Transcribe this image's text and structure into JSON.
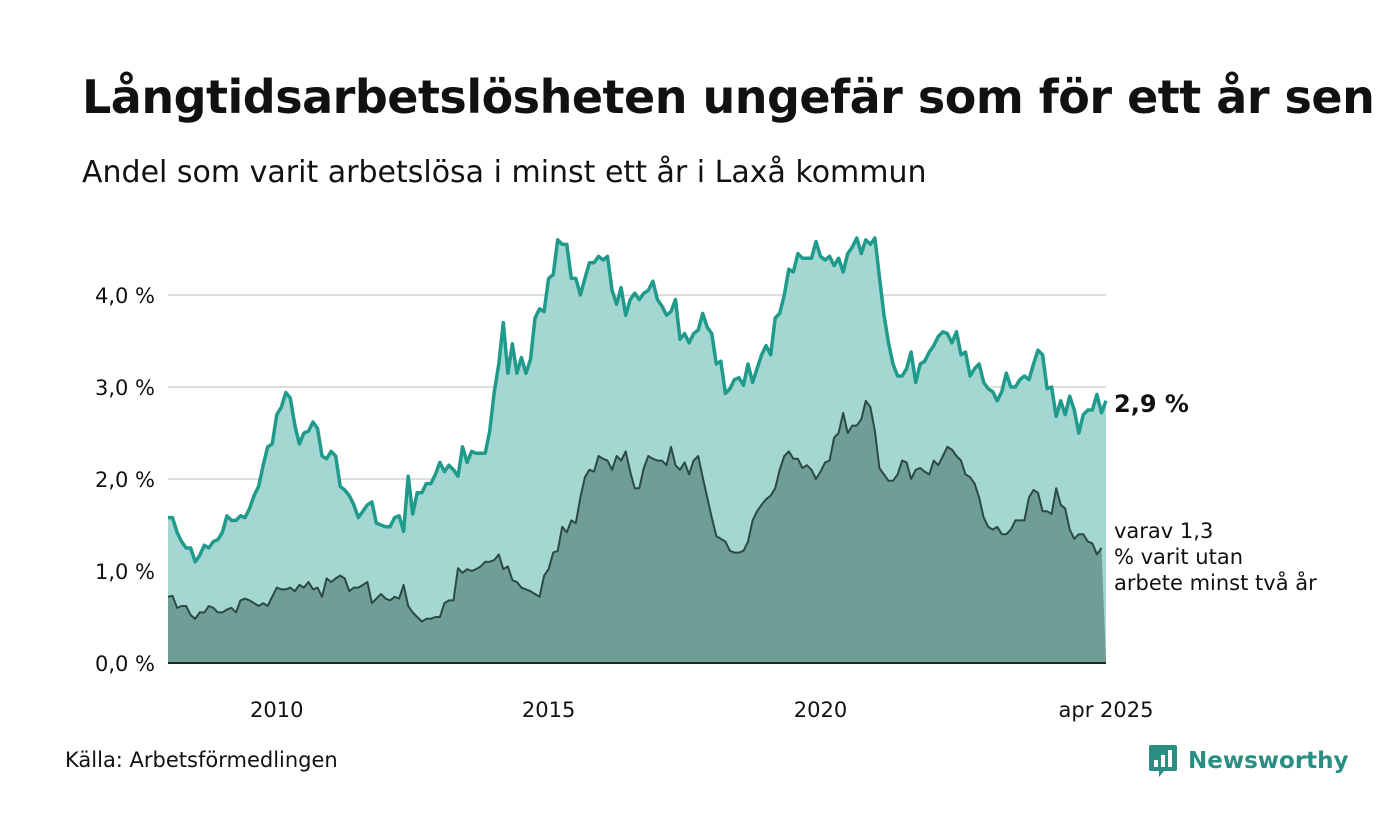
{
  "title": "Långtidsarbetslösheten ungefär som för ett år sen",
  "subtitle": "Andel som varit arbetslösa i minst ett år i Laxå kommun",
  "source": "Källa: Arbetsförmedlingen",
  "brand": "Newsworthy",
  "colors": {
    "series1_line": "#1f9a8b",
    "series1_fill": "#a4d7d1",
    "series2_line": "#2c4a44",
    "series2_fill": "#6f9e96",
    "grid": "#dddddd",
    "brand": "#2a8f82"
  },
  "chart_data": {
    "type": "area",
    "x_start": "2008-01",
    "x_end": "2025-04",
    "x_ticks": [
      "2010",
      "2015",
      "2020",
      "apr 2025"
    ],
    "y_ticks": [
      "0,0 %",
      "1,0 %",
      "2,0 %",
      "3,0 %",
      "4,0 %"
    ],
    "ylim": [
      0,
      4.8
    ],
    "grid": true,
    "series": [
      {
        "name": "",
        "end_label": "2,9 %",
        "values": [
          1.58,
          1.58,
          1.42,
          1.32,
          1.25,
          1.25,
          1.1,
          1.17,
          1.28,
          1.25,
          1.32,
          1.34,
          1.42,
          1.6,
          1.55,
          1.55,
          1.6,
          1.58,
          1.68,
          1.82,
          1.92,
          2.15,
          2.35,
          2.38,
          2.7,
          2.78,
          2.94,
          2.88,
          2.58,
          2.38,
          2.5,
          2.52,
          2.62,
          2.55,
          2.25,
          2.22,
          2.3,
          2.25,
          1.92,
          1.88,
          1.82,
          1.72,
          1.58,
          1.65,
          1.72,
          1.75,
          1.52,
          1.5,
          1.48,
          1.48,
          1.58,
          1.6,
          1.43,
          2.03,
          1.62,
          1.85,
          1.85,
          1.95,
          1.95,
          2.05,
          2.18,
          2.08,
          2.15,
          2.1,
          2.03,
          2.35,
          2.18,
          2.3,
          2.28,
          2.28,
          2.28,
          2.52,
          2.95,
          3.25,
          3.7,
          3.15,
          3.47,
          3.15,
          3.32,
          3.15,
          3.3,
          3.75,
          3.85,
          3.82,
          4.18,
          4.22,
          4.6,
          4.55,
          4.55,
          4.18,
          4.18,
          4.0,
          4.18,
          4.35,
          4.35,
          4.42,
          4.38,
          4.42,
          4.05,
          3.9,
          4.08,
          3.78,
          3.95,
          4.02,
          3.95,
          4.02,
          4.05,
          4.15,
          3.95,
          3.88,
          3.78,
          3.82,
          3.95,
          3.52,
          3.58,
          3.48,
          3.58,
          3.62,
          3.8,
          3.65,
          3.58,
          3.25,
          3.28,
          2.93,
          2.98,
          3.08,
          3.1,
          3.02,
          3.25,
          3.05,
          3.2,
          3.35,
          3.45,
          3.35,
          3.75,
          3.8,
          4.0,
          4.28,
          4.25,
          4.45,
          4.4,
          4.4,
          4.4,
          4.58,
          4.42,
          4.38,
          4.42,
          4.32,
          4.4,
          4.25,
          4.45,
          4.52,
          4.62,
          4.45,
          4.6,
          4.55,
          4.62,
          4.2,
          3.78,
          3.48,
          3.25,
          3.12,
          3.12,
          3.2,
          3.38,
          3.05,
          3.25,
          3.28,
          3.38,
          3.45,
          3.55,
          3.6,
          3.58,
          3.48,
          3.6,
          3.35,
          3.38,
          3.12,
          3.2,
          3.25,
          3.05,
          2.98,
          2.95,
          2.85,
          2.95,
          3.15,
          3.0,
          3.0,
          3.08,
          3.12,
          3.08,
          3.25,
          3.4,
          3.35,
          2.98,
          3.0,
          2.68,
          2.85,
          2.7,
          2.9,
          2.75,
          2.5,
          2.7,
          2.75,
          2.75,
          2.92,
          2.72,
          2.85
        ]
      },
      {
        "name": "",
        "end_label": "varav 1,3 % varit utan arbete minst två år",
        "values": [
          0.72,
          0.73,
          0.6,
          0.62,
          0.62,
          0.52,
          0.48,
          0.55,
          0.55,
          0.62,
          0.6,
          0.55,
          0.55,
          0.58,
          0.6,
          0.55,
          0.68,
          0.7,
          0.68,
          0.65,
          0.62,
          0.65,
          0.62,
          0.72,
          0.82,
          0.8,
          0.8,
          0.82,
          0.78,
          0.85,
          0.82,
          0.88,
          0.8,
          0.82,
          0.72,
          0.92,
          0.88,
          0.92,
          0.95,
          0.92,
          0.78,
          0.82,
          0.82,
          0.85,
          0.88,
          0.65,
          0.7,
          0.75,
          0.7,
          0.68,
          0.72,
          0.7,
          0.85,
          0.62,
          0.55,
          0.5,
          0.45,
          0.48,
          0.48,
          0.5,
          0.5,
          0.65,
          0.68,
          0.68,
          1.03,
          0.98,
          1.02,
          1.0,
          1.02,
          1.05,
          1.1,
          1.1,
          1.12,
          1.18,
          1.02,
          1.05,
          0.9,
          0.88,
          0.82,
          0.8,
          0.78,
          0.75,
          0.72,
          0.95,
          1.02,
          1.2,
          1.22,
          1.48,
          1.42,
          1.55,
          1.52,
          1.8,
          2.02,
          2.1,
          2.08,
          2.25,
          2.22,
          2.2,
          2.1,
          2.25,
          2.2,
          2.3,
          2.08,
          1.9,
          1.9,
          2.12,
          2.25,
          2.22,
          2.2,
          2.2,
          2.15,
          2.35,
          2.15,
          2.1,
          2.18,
          2.05,
          2.2,
          2.25,
          2.02,
          1.8,
          1.58,
          1.38,
          1.35,
          1.32,
          1.22,
          1.2,
          1.2,
          1.22,
          1.32,
          1.55,
          1.65,
          1.72,
          1.78,
          1.82,
          1.9,
          2.1,
          2.25,
          2.3,
          2.22,
          2.22,
          2.12,
          2.15,
          2.1,
          2.0,
          2.08,
          2.18,
          2.2,
          2.45,
          2.5,
          2.72,
          2.5,
          2.58,
          2.58,
          2.65,
          2.85,
          2.78,
          2.52,
          2.12,
          2.05,
          1.98,
          1.98,
          2.05,
          2.2,
          2.18,
          2.0,
          2.1,
          2.12,
          2.08,
          2.05,
          2.2,
          2.15,
          2.25,
          2.35,
          2.32,
          2.25,
          2.2,
          2.05,
          2.02,
          1.95,
          1.8,
          1.58,
          1.48,
          1.45,
          1.48,
          1.4,
          1.4,
          1.45,
          1.55,
          1.55,
          1.55,
          1.8,
          1.88,
          1.85,
          1.65,
          1.65,
          1.62,
          1.9,
          1.72,
          1.68,
          1.45,
          1.35,
          1.4,
          1.4,
          1.32,
          1.3,
          1.18,
          1.25
        ]
      }
    ]
  }
}
